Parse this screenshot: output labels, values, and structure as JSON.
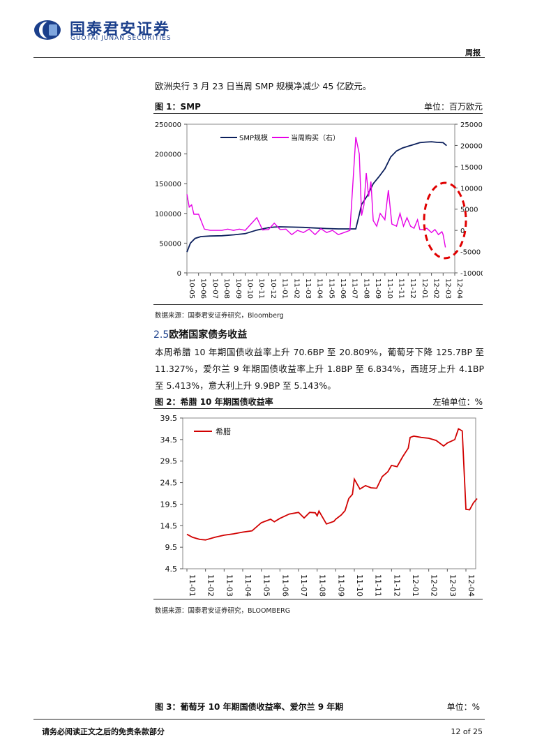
{
  "header": {
    "brand_cn": "国泰君安证券",
    "brand_en": "GUOTAI JUNAN SECURITIES",
    "doc_type": "周报",
    "brand_color": "#1b3f8b"
  },
  "intro_text": "欧洲央行 3 月 23 日当周 SMP 规模净减少 45 亿欧元。",
  "figure1": {
    "title": "图 1：SMP",
    "unit": "单位：百万欧元",
    "source": "数据来源：国泰君安证券研究，Bloomberg",
    "legend": [
      "SMP规模",
      "当周购买（右）"
    ]
  },
  "section": {
    "number": "2.5",
    "title": "欧猪国家债务收益"
  },
  "section_text": "本周希腊 10 年期国债收益率上升 70.6BP 至 20.809%，葡萄牙下降 125.7BP 至 11.327%，爱尔兰 9 年期国债收益率上升 1.8BP 至 6.834%，西班牙上升 4.1BP 至 5.413%，意大利上升 9.9BP 至 5.143%。",
  "figure2": {
    "title": "图 2：希腊 10 年期国债收益率",
    "unit": "左轴单位：%",
    "source": "数据来源：国泰君安证券研究，BLOOMBERG",
    "legend": [
      "希腊"
    ]
  },
  "figure3": {
    "title": "图 3：葡萄牙 10 年期国债收益率、爱尔兰 9 年期",
    "unit": "单位：%"
  },
  "footer": {
    "disclaimer": "请务必阅读正文之后的免责条款部分",
    "page": "12 of 25"
  },
  "chart_data": [
    {
      "type": "line",
      "chart": "figure1",
      "x_ticks": [
        "10-05",
        "10-06",
        "10-07",
        "10-08",
        "10-09",
        "10-10",
        "10-11",
        "10-12",
        "11-01",
        "11-02",
        "11-03",
        "11-04",
        "11-05",
        "11-06",
        "11-07",
        "11-08",
        "11-09",
        "11-10",
        "11-11",
        "11-12",
        "12-01",
        "12-02",
        "12-03",
        "12-04"
      ],
      "y_left_ticks": [
        "250000",
        "200000",
        "150000",
        "100000",
        "50000",
        "0"
      ],
      "y_left_lim": [
        0,
        250000
      ],
      "y_right_ticks": [
        "25000",
        "20000",
        "15000",
        "10000",
        "5000",
        "0",
        "-5000",
        "-10000"
      ],
      "y_right_lim": [
        -10000,
        25000
      ],
      "series": [
        {
          "name": "SMP规模",
          "axis": "left",
          "color": "#0b1f5c",
          "x": [
            0,
            0.3,
            0.7,
            1.2,
            2,
            3,
            4,
            5,
            6,
            7,
            7.5,
            8,
            9,
            10,
            11,
            12,
            13,
            14,
            14.5,
            14.8,
            15,
            15.5,
            16,
            16.5,
            17,
            17.5,
            18,
            18.5,
            19,
            19.5,
            20,
            20.5,
            21,
            21.5,
            22,
            22.3
          ],
          "y": [
            35000,
            50000,
            58000,
            61000,
            62000,
            62500,
            64000,
            66000,
            72000,
            76000,
            77000,
            77500,
            77000,
            76500,
            75500,
            74500,
            74000,
            74000,
            74000,
            98000,
            115000,
            130000,
            150000,
            162000,
            175000,
            195000,
            205000,
            210000,
            213000,
            216000,
            219000,
            220000,
            220500,
            219500,
            219000,
            214000
          ]
        },
        {
          "name": "当周购买（右）",
          "axis": "right",
          "color": "#e600e6",
          "x": [
            0,
            0.2,
            0.4,
            0.6,
            1,
            1.5,
            2,
            2.5,
            3,
            3.5,
            4,
            4.5,
            5,
            5.5,
            6,
            6.5,
            7,
            7.5,
            8,
            8.5,
            9,
            9.5,
            10,
            10.5,
            11,
            11.5,
            12,
            12.5,
            13,
            13.5,
            14,
            14.5,
            14.8,
            15,
            15.2,
            15.4,
            15.6,
            15.8,
            16,
            16.3,
            16.6,
            17,
            17.3,
            17.6,
            18,
            18.3,
            18.6,
            18.9,
            19.2,
            19.5,
            19.8,
            20,
            20.3,
            20.6,
            21,
            21.3,
            21.6,
            21.9,
            22,
            22.2
          ],
          "y": [
            8500,
            5500,
            6000,
            3800,
            3800,
            300,
            0,
            0,
            0,
            300,
            0,
            300,
            0,
            1500,
            3000,
            100,
            200,
            1700,
            200,
            300,
            -1000,
            0,
            -500,
            300,
            -1000,
            400,
            -500,
            0,
            -1000,
            -500,
            0,
            22000,
            18000,
            3500,
            6000,
            13500,
            8000,
            11500,
            2300,
            1000,
            4000,
            2500,
            9500,
            1500,
            1000,
            4000,
            1000,
            3000,
            1000,
            500,
            2500,
            200,
            200,
            500,
            -500,
            200,
            -1000,
            -300,
            -1000,
            -4000
          ]
        }
      ]
    },
    {
      "type": "line",
      "chart": "figure2",
      "x_ticks": [
        "11-01",
        "11-02",
        "11-03",
        "11-04",
        "11-05",
        "11-06",
        "11-07",
        "11-08",
        "11-09",
        "11-10",
        "11-11",
        "11-12",
        "12-01",
        "12-02",
        "12-03",
        "12-04"
      ],
      "y_ticks": [
        "39.5",
        "34.5",
        "29.5",
        "24.5",
        "19.5",
        "14.5",
        "9.5",
        "4.5"
      ],
      "ylim": [
        4.5,
        39.5
      ],
      "series": [
        {
          "name": "希腊",
          "color": "#d10000",
          "x": [
            0,
            0.3,
            0.7,
            1,
            1.5,
            2,
            2.5,
            3,
            3.5,
            4,
            4.5,
            4.7,
            5,
            5.5,
            6,
            6.3,
            6.6,
            6.9,
            7,
            7.1,
            7.5,
            7.9,
            8,
            8.3,
            8.5,
            8.7,
            8.9,
            9,
            9.3,
            9.6,
            9.9,
            10.2,
            10.5,
            10.8,
            11,
            11.3,
            11.6,
            11.9,
            12,
            12.2,
            12.6,
            13,
            13.4,
            13.8,
            14,
            14.4,
            14.6,
            14.8,
            15,
            15.2,
            15.4,
            15.6
          ],
          "y": [
            12.5,
            11.8,
            11.3,
            11.2,
            11.8,
            12.3,
            12.6,
            13.0,
            13.3,
            15.2,
            16.0,
            15.4,
            16.2,
            17.2,
            17.6,
            16.3,
            17.6,
            17.5,
            16.8,
            17.9,
            14.9,
            15.5,
            16.0,
            17.0,
            18.0,
            20.8,
            21.8,
            25.3,
            23.0,
            23.8,
            23.3,
            23.2,
            25.9,
            27.0,
            28.5,
            28.2,
            30.5,
            32.5,
            35.0,
            35.3,
            35.0,
            34.8,
            34.3,
            33.0,
            33.7,
            34.5,
            37.0,
            36.5,
            18.3,
            18.2,
            19.8,
            20.8
          ]
        }
      ]
    }
  ]
}
